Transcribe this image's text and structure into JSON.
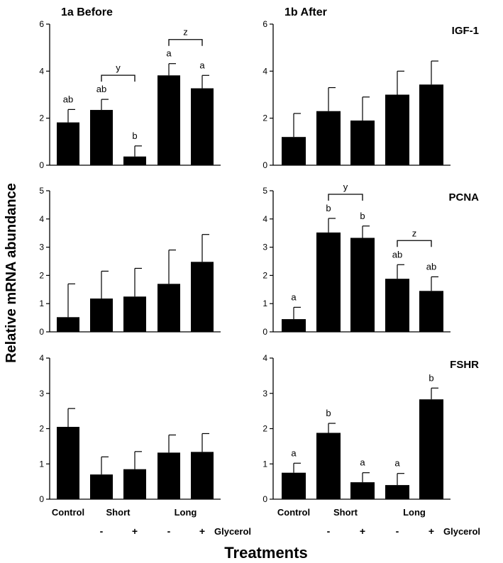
{
  "figure": {
    "ylabel": "Relative mRNA abundance",
    "xlabel": "Treatments",
    "categories": [
      "Control",
      "Short",
      "Long"
    ],
    "glycerol_label": "Glycerol",
    "glycerol_signs": [
      "-",
      "+",
      "-",
      "+"
    ]
  },
  "chart_data": [
    {
      "type": "bar",
      "panel": "1a Before",
      "title": "1a Before",
      "gene": "",
      "ylim": [
        0,
        6
      ],
      "ticks": [
        "0",
        "2",
        "4",
        "6"
      ],
      "groups": [
        "Control",
        "Short -",
        "Short +",
        "Long -",
        "Long +"
      ],
      "values": [
        1.82,
        2.35,
        0.37,
        3.82,
        3.27
      ],
      "errors": [
        0.55,
        0.45,
        0.45,
        0.5,
        0.55
      ],
      "letters": [
        "ab",
        "ab",
        "b",
        "a",
        "a"
      ],
      "brackets": [
        {
          "label": "y",
          "from": 1,
          "to": 2
        },
        {
          "label": "z",
          "from": 3,
          "to": 4
        }
      ]
    },
    {
      "type": "bar",
      "panel": "1b After",
      "title": "1b After",
      "gene": "IGF-1",
      "ylim": [
        0,
        6
      ],
      "ticks": [
        "0",
        "2",
        "4",
        "6"
      ],
      "groups": [
        "Control",
        "Short -",
        "Short +",
        "Long -",
        "Long +"
      ],
      "values": [
        1.2,
        2.3,
        1.9,
        3.0,
        3.43
      ],
      "errors": [
        1.0,
        1.0,
        1.0,
        1.0,
        1.0
      ],
      "letters": [
        "",
        "",
        "",
        "",
        ""
      ],
      "brackets": []
    },
    {
      "type": "bar",
      "panel": "1a Before",
      "title": "",
      "gene": "",
      "ylim": [
        0,
        5
      ],
      "ticks": [
        "0",
        "1",
        "2",
        "3",
        "4",
        "5"
      ],
      "groups": [
        "Control",
        "Short -",
        "Short +",
        "Long -",
        "Long +"
      ],
      "values": [
        0.52,
        1.18,
        1.25,
        1.7,
        2.48
      ],
      "errors": [
        1.18,
        0.97,
        1.0,
        1.2,
        0.97
      ],
      "letters": [
        "",
        "",
        "",
        "",
        ""
      ],
      "brackets": []
    },
    {
      "type": "bar",
      "panel": "1b After",
      "title": "",
      "gene": "PCNA",
      "ylim": [
        0,
        5
      ],
      "ticks": [
        "0",
        "1",
        "2",
        "3",
        "4",
        "5"
      ],
      "groups": [
        "Control",
        "Short -",
        "Short +",
        "Long -",
        "Long +"
      ],
      "values": [
        0.45,
        3.52,
        3.33,
        1.88,
        1.45
      ],
      "errors": [
        0.42,
        0.5,
        0.42,
        0.5,
        0.5
      ],
      "letters": [
        "a",
        "b",
        "b",
        "ab",
        "ab"
      ],
      "brackets": [
        {
          "label": "y",
          "from": 1,
          "to": 2
        },
        {
          "label": "z",
          "from": 3,
          "to": 4
        }
      ]
    },
    {
      "type": "bar",
      "panel": "1a Before",
      "title": "",
      "gene": "",
      "ylim": [
        0,
        4
      ],
      "ticks": [
        "0",
        "1",
        "2",
        "3",
        "4"
      ],
      "groups": [
        "Control",
        "Short -",
        "Short +",
        "Long -",
        "Long +"
      ],
      "values": [
        2.05,
        0.7,
        0.85,
        1.32,
        1.34
      ],
      "errors": [
        0.52,
        0.5,
        0.5,
        0.5,
        0.52
      ],
      "letters": [
        "",
        "",
        "",
        "",
        ""
      ],
      "brackets": []
    },
    {
      "type": "bar",
      "panel": "1b After",
      "title": "",
      "gene": "FSHR",
      "ylim": [
        0,
        4
      ],
      "ticks": [
        "0",
        "1",
        "2",
        "3",
        "4"
      ],
      "groups": [
        "Control",
        "Short -",
        "Short +",
        "Long -",
        "Long +"
      ],
      "values": [
        0.75,
        1.88,
        0.48,
        0.4,
        2.83
      ],
      "errors": [
        0.27,
        0.27,
        0.27,
        0.33,
        0.32
      ],
      "letters": [
        "a",
        "b",
        "a",
        "a",
        "b"
      ],
      "brackets": []
    }
  ]
}
